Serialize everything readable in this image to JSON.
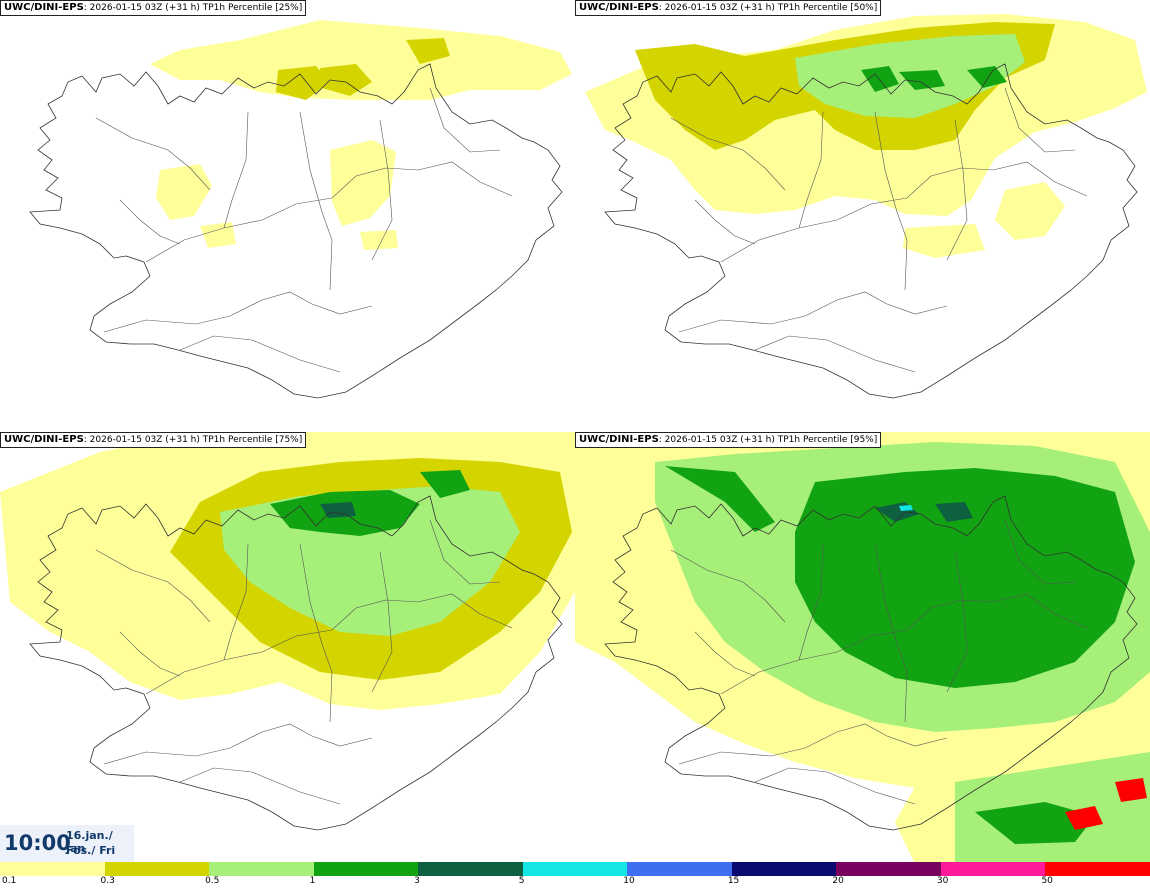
{
  "panels": [
    {
      "title_model": "UWC/DINI-EPS",
      "title_rest": ": 2026-01-15 03Z (+31 h) TP1h Percentile [25%]",
      "level": 1
    },
    {
      "title_model": "UWC/DINI-EPS",
      "title_rest": ": 2026-01-15 03Z (+31 h) TP1h Percentile [50%]",
      "level": 2
    },
    {
      "title_model": "UWC/DINI-EPS",
      "title_rest": ": 2026-01-15 03Z (+31 h) TP1h Percentile [75%]",
      "level": 3
    },
    {
      "title_model": "UWC/DINI-EPS",
      "title_rest": ": 2026-01-15 03Z (+31 h) TP1h Percentile [95%]",
      "level": 4
    }
  ],
  "time": {
    "clock": "10:00",
    "date_line1": "16.jan./ Jan",
    "date_line2": "Fös./ Fri"
  },
  "legend": {
    "labels": [
      "0.1",
      "0.3",
      "0.5",
      "1",
      "3",
      "5",
      "10",
      "15",
      "20",
      "30",
      "50"
    ],
    "colors": [
      "#ffff99",
      "#d4d400",
      "#a6f07a",
      "#12a312",
      "#0d6040",
      "#14e6e6",
      "#3f6ff0",
      "#0a0a70",
      "#7a0060",
      "#ff1a9a",
      "#ff0000"
    ]
  }
}
